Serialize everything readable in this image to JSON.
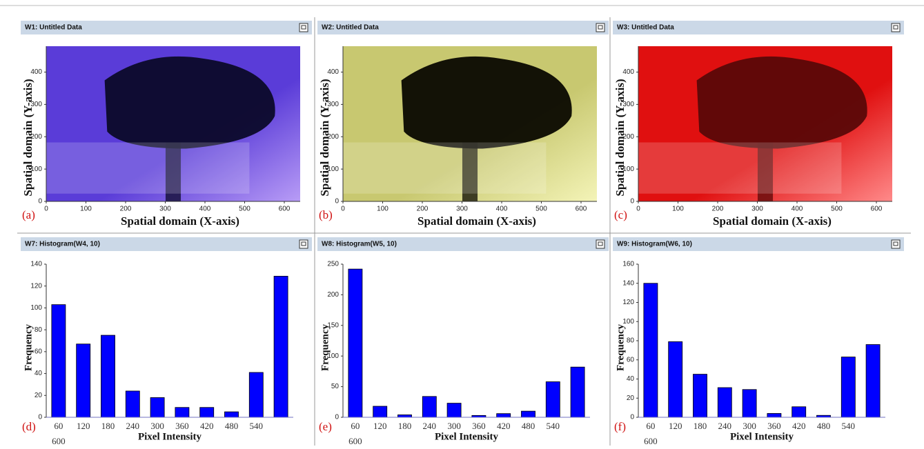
{
  "chart_data": [
    {
      "type": "image",
      "window_title": "W1: Untitled Data",
      "panel_label": "(a)",
      "xlabel": "Spatial domain (X-axis)",
      "ylabel": "Spatial domain (Y-axis)",
      "xlim": [
        0,
        640
      ],
      "ylim": [
        0,
        480
      ],
      "xticks": [
        0,
        100,
        200,
        300,
        400,
        500,
        600
      ],
      "yticks": [
        0,
        100,
        200,
        300,
        400
      ]
    },
    {
      "type": "image",
      "window_title": "W2: Untitled Data",
      "panel_label": "(b)",
      "xlabel": "Spatial domain (X-axis)",
      "ylabel": "Spatial domain (Y-axis)",
      "xlim": [
        0,
        640
      ],
      "ylim": [
        0,
        480
      ],
      "xticks": [
        0,
        100,
        200,
        300,
        400,
        500,
        600
      ],
      "yticks": [
        0,
        100,
        200,
        300,
        400
      ]
    },
    {
      "type": "image",
      "window_title": "W3: Untitled Data",
      "panel_label": "(c)",
      "xlabel": "Spatial domain (X-axis)",
      "ylabel": "Spatial domain (Y-axis)",
      "xlim": [
        0,
        640
      ],
      "ylim": [
        0,
        480
      ],
      "xticks": [
        0,
        100,
        200,
        300,
        400,
        500,
        600
      ],
      "yticks": [
        0,
        100,
        200,
        300,
        400
      ]
    },
    {
      "type": "bar",
      "window_title": "W7: Histogram(W4, 10)",
      "panel_label": "(d)",
      "xlabel": "Pixel Intensity",
      "ylabel": "Frequency",
      "categories": [
        "60",
        "120",
        "180",
        "240",
        "300",
        "360",
        "420",
        "480",
        "540",
        "600"
      ],
      "values": [
        103,
        67,
        75,
        24,
        18,
        9,
        9,
        5,
        41,
        129
      ],
      "color": "#0000ff",
      "ylim": [
        0,
        140
      ],
      "yticks": [
        0,
        20,
        40,
        60,
        80,
        100,
        120,
        140
      ]
    },
    {
      "type": "bar",
      "window_title": "W8: Histogram(W5, 10)",
      "panel_label": "(e)",
      "xlabel": "Pixel Intensity",
      "ylabel": "Frequency",
      "categories": [
        "60",
        "120",
        "180",
        "240",
        "300",
        "360",
        "420",
        "480",
        "540",
        "600"
      ],
      "values": [
        242,
        18,
        4,
        34,
        23,
        3,
        6,
        10,
        58,
        82
      ],
      "color": "#0000ff",
      "ylim": [
        0,
        250
      ],
      "yticks": [
        0,
        50,
        100,
        150,
        200,
        250
      ]
    },
    {
      "type": "bar",
      "window_title": "W9: Histogram(W6, 10)",
      "panel_label": "(f)",
      "xlabel": "Pixel Intensity",
      "ylabel": "Frequency",
      "categories": [
        "60",
        "120",
        "180",
        "240",
        "300",
        "360",
        "420",
        "480",
        "540",
        "600"
      ],
      "values": [
        140,
        79,
        45,
        31,
        29,
        4,
        11,
        2,
        63,
        76
      ],
      "color": "#0000ff",
      "ylim": [
        0,
        160
      ],
      "yticks": [
        0,
        20,
        40,
        60,
        80,
        100,
        120,
        140,
        160
      ]
    }
  ]
}
